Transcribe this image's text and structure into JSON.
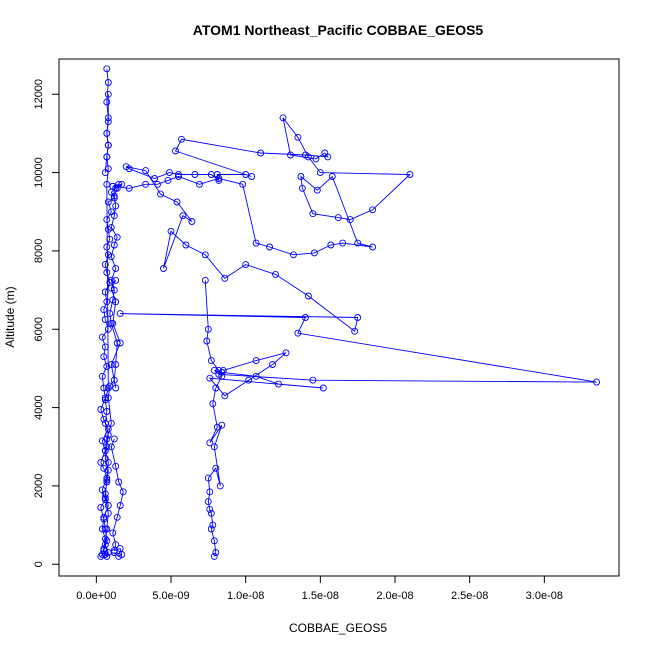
{
  "chart_data": {
    "type": "line",
    "title": "ATOM1 Northeast_Pacific COBBAE_GEOS5",
    "xlabel": "COBBAE_GEOS5",
    "ylabel": "Altitude (m)",
    "xlim": [
      -2.5e-09,
      3.5e-08
    ],
    "ylim": [
      -300,
      12900
    ],
    "x_ticks": [
      0,
      5e-09,
      1e-08,
      1.5e-08,
      2e-08,
      2.5e-08,
      3e-08
    ],
    "x_tick_labels": [
      "0.0e+00",
      "5.0e-09",
      "1.0e-08",
      "1.5e-08",
      "2.0e-08",
      "2.5e-08",
      "3.0e-08"
    ],
    "y_ticks": [
      0,
      2000,
      4000,
      6000,
      8000,
      10000,
      12000
    ],
    "y_tick_labels": [
      "0",
      "2000",
      "4000",
      "6000",
      "8000",
      "10000",
      "12000"
    ],
    "grid": false,
    "marker": "open-circle",
    "series_color": "#0000ff",
    "series": [
      {
        "x": [
          3e-10,
          4e-10,
          5e-10,
          6e-10,
          4e-10,
          5e-10,
          3e-10,
          6e-10,
          4e-10,
          7e-10,
          5e-10,
          3e-10,
          6e-10,
          4e-10,
          8e-10,
          5e-10,
          3e-10,
          6e-10,
          5e-10,
          4e-10,
          7e-10,
          5e-10,
          6e-10,
          4e-10,
          8e-10,
          6e-10,
          5e-10,
          7e-10,
          6e-10,
          9e-10,
          7e-10,
          6e-10,
          8e-10,
          7e-10,
          9e-10,
          8e-10,
          7e-10,
          1e-09,
          8e-10,
          1.2e-09,
          1e-09,
          1.3e-09,
          1.5e-09,
          1.1e-09,
          1.7e-09,
          1.4e-09,
          1.2e-09,
          1.3e-09,
          1.2e-09,
          1e-09,
          1.4e-09,
          1.2e-09,
          1e-09,
          1.3e-09,
          1e-09,
          1.2e-09,
          1.1e-09,
          9e-10,
          1e-09,
          1.4e-09,
          1.3e-09,
          1.2e-09,
          9e-10,
          8e-10,
          1e-09,
          7e-10,
          6e-10,
          8e-10,
          7e-10,
          6e-10,
          8e-10,
          7e-10,
          6e-10,
          8e-10,
          7e-10,
          6e-10,
          5e-10,
          7e-10,
          6e-10,
          5e-10,
          8e-10,
          6e-10,
          7e-10,
          8e-10,
          6e-10,
          7e-10,
          8e-10,
          6e-10,
          7e-10,
          6e-10,
          8e-10,
          7e-10,
          8e-10,
          7e-10,
          8e-10,
          7e-10,
          8e-10,
          8e-10
        ],
        "y": [
          200,
          250,
          400,
          650,
          900,
          1150,
          1450,
          1650,
          1900,
          2200,
          2450,
          2600,
          2900,
          3150,
          3450,
          3700,
          3950,
          4250,
          4500,
          4800,
          5050,
          5300,
          5550,
          5800,
          6000,
          6250,
          6500,
          6700,
          6950,
          7200,
          7450,
          7650,
          7900,
          8100,
          8300,
          8550,
          8800,
          9000,
          9250,
          9350,
          9500,
          9600,
          9700,
          9650,
          9700,
          9600,
          9400,
          9150,
          8900,
          8600,
          8350,
          8150,
          7850,
          7550,
          7250,
          7000,
          6750,
          6400,
          6150,
          5650,
          5100,
          4700,
          4550,
          4250,
          3600,
          3200,
          2900,
          2600,
          2150,
          1700,
          1300,
          900,
          500,
          300,
          200,
          250,
          350,
          600,
          900,
          1200,
          1500,
          1800,
          2100,
          2400,
          2700,
          3000,
          3300,
          3600,
          3900,
          4200,
          4500,
          9700,
          10100,
          10400,
          10700,
          11000,
          11300,
          12000
        ]
      },
      {
        "x": [
          6e-10,
          7e-10,
          8e-10,
          7e-10,
          8e-10,
          7e-10,
          8e-10,
          7e-10
        ],
        "y": [
          10000,
          10400,
          10700,
          11000,
          11400,
          11800,
          12300,
          12650
        ]
      },
      {
        "x": [
          1.2e-09,
          1.5e-09,
          1.7e-09,
          1.6e-09,
          1.2e-09,
          1.3e-09,
          1.1e-09,
          1.4e-09,
          1.6e-09,
          1.8e-09,
          1.5e-09,
          1.3e-09,
          1e-09,
          1.2e-09
        ],
        "y": [
          300,
          200,
          250,
          400,
          350,
          500,
          800,
          1200,
          1500,
          1850,
          2100,
          2500,
          3000,
          3200
        ]
      },
      {
        "x": [
          1.3e-09,
          1e-09,
          1.6e-09,
          1.1e-09,
          1.3e-09,
          1e-09,
          1.3e-09
        ],
        "y": [
          4500,
          5100,
          5650,
          6150,
          6700,
          7050,
          7250
        ]
      },
      {
        "x": [
          7.9e-09,
          8e-09,
          7.9e-09,
          7.7e-09,
          7.8e-09,
          7.7e-09,
          7.6e-09,
          7.5e-09,
          7.6e-09,
          7.5e-09,
          8e-09,
          8.3e-09,
          7.9e-09,
          8.4e-09,
          7.6e-09,
          8.1e-09,
          7.8e-09,
          8e-09,
          8.4e-09,
          8.2e-09,
          7.7e-09,
          7.4e-09,
          7.5e-09,
          7.3e-09
        ],
        "y": [
          200,
          300,
          600,
          900,
          1000,
          1300,
          1400,
          1600,
          1850,
          2200,
          2450,
          2000,
          3000,
          3550,
          3100,
          3500,
          4100,
          4500,
          4800,
          4950,
          5200,
          5700,
          6000,
          7250
        ]
      },
      {
        "x": [
          8.5e-09,
          1.07e-08,
          1.27e-08,
          1.18e-08,
          1.02e-08,
          8.6e-09,
          7.6e-09,
          1.52e-08,
          1.22e-08,
          1.07e-08,
          8.4e-09,
          7.9e-09,
          8.2e-09,
          1.45e-08,
          3.35e-08,
          1.35e-08,
          1.4e-08,
          1.6e-09,
          1.75e-08,
          1.73e-08,
          1.42e-08,
          1.2e-08,
          1e-08,
          8.6e-09,
          7.3e-09,
          6e-09,
          5e-09,
          4.5e-09,
          5.8e-09,
          6.4e-09,
          5.4e-09,
          4.3e-09,
          3.3e-09,
          2e-09,
          2.2e-09,
          3.9e-09,
          4.9e-09,
          5.5e-09,
          6.6e-09,
          7.7e-09,
          8.2e-09,
          8.1e-09,
          1e-08,
          1.04e-08,
          5.3e-09,
          5.7e-09,
          1.1e-08,
          1.4e-08,
          1.55e-08,
          1.53e-08,
          1.47e-08,
          1.3e-08,
          1.25e-08,
          1.35e-08,
          1.42e-08,
          1.5e-08,
          2.1e-08,
          1.85e-08,
          1.7e-08,
          1.62e-08,
          1.45e-08,
          1.38e-08,
          1.37e-08,
          1.48e-08,
          1.58e-08,
          1.75e-08,
          1.85e-08,
          1.65e-08,
          1.57e-08,
          1.46e-08,
          1.32e-08,
          1.16e-08,
          1.07e-08,
          9.8e-09,
          8.2e-09,
          6.9e-09,
          5.5e-09,
          4.8e-09,
          4.1e-09,
          3.3e-09,
          2.2e-09,
          1.1e-09
        ],
        "y": [
          4950,
          5200,
          5400,
          5100,
          4700,
          4300,
          4750,
          4500,
          4600,
          4800,
          4900,
          4950,
          4850,
          4700,
          4650,
          5900,
          6300,
          6400,
          6300,
          5950,
          6850,
          7400,
          7650,
          7300,
          7900,
          8150,
          8500,
          7550,
          8900,
          8750,
          9250,
          9450,
          10050,
          10150,
          10100,
          9850,
          10000,
          9950,
          9950,
          9950,
          9800,
          9950,
          9950,
          9900,
          10550,
          10850,
          10500,
          10450,
          10400,
          10500,
          10350,
          10450,
          11400,
          10900,
          10400,
          10000,
          9950,
          9050,
          8800,
          8850,
          8950,
          9600,
          9900,
          9550,
          9900,
          8200,
          8100,
          8200,
          8150,
          7950,
          7900,
          8100,
          8200,
          9700,
          9850,
          9700,
          9900,
          9800,
          9700,
          9700,
          9600,
          9650
        ]
      }
    ]
  }
}
